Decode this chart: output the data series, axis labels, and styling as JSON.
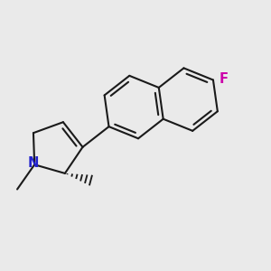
{
  "bg_color": "#eaeaea",
  "bond_color": "#1a1a1a",
  "N_color": "#2222cc",
  "F_color": "#cc00aa",
  "bond_width": 1.5,
  "fig_size": [
    3.0,
    3.0
  ],
  "dpi": 100,
  "xlim": [
    0.0,
    1.0
  ],
  "ylim": [
    0.0,
    1.0
  ]
}
